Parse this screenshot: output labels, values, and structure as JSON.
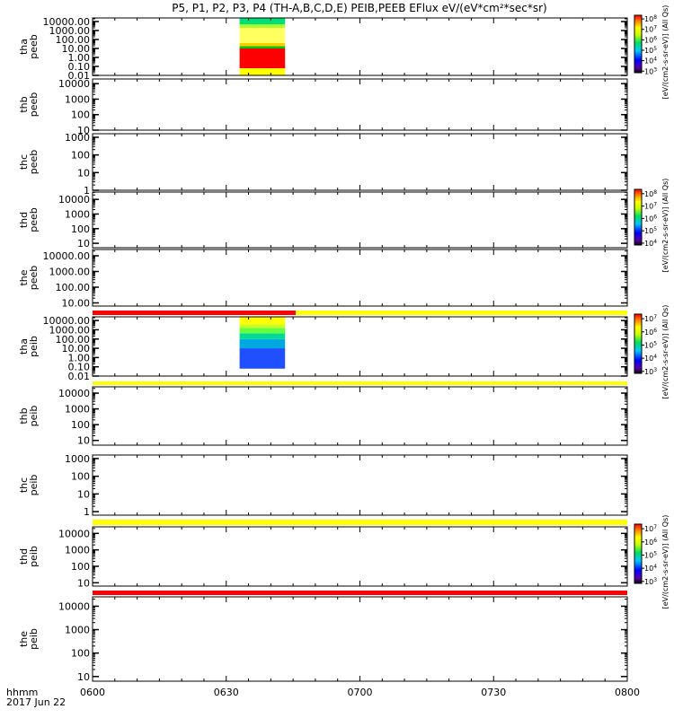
{
  "chart_data": {
    "type": "heatmap",
    "title": "P5, P1, P2, P3, P4 (TH-A,B,C,D,E) PEIB,PEEB EFlux eV/(eV*cm²*sec*sr)",
    "x_axis": {
      "label_line1": "hhmm",
      "label_line2": "2017 Jun 22",
      "range_hours": [
        6.0,
        8.0
      ],
      "ticks": [
        {
          "label": "0600",
          "t": 6.0
        },
        {
          "label": "0630",
          "t": 6.5
        },
        {
          "label": "0700",
          "t": 7.0
        },
        {
          "label": "0730",
          "t": 7.5
        },
        {
          "label": "0800",
          "t": 8.0
        }
      ]
    },
    "panels": [
      {
        "label1": "tha",
        "label2": "peeb",
        "ylim_log10": [
          -2,
          4.4
        ],
        "ticks": [
          {
            "label": "10000.00",
            "v": 4
          },
          {
            "label": "1000.00",
            "v": 3
          },
          {
            "label": "100.00",
            "v": 2
          },
          {
            "label": "10.00",
            "v": 1
          },
          {
            "label": "1.00",
            "v": 0
          },
          {
            "label": "0.10",
            "v": -1
          },
          {
            "label": "0.01",
            "v": -2
          }
        ],
        "data_interval": [
          6.55,
          6.72
        ],
        "bands": [
          {
            "from": -2,
            "to": -1.2,
            "color": "#ffff00"
          },
          {
            "from": -1.2,
            "to": 1.0,
            "color": "#ff0000"
          },
          {
            "from": 1.0,
            "to": 1.25,
            "color": "#00c800"
          },
          {
            "from": 1.25,
            "to": 1.6,
            "color": "#ffcc00"
          },
          {
            "from": 1.6,
            "to": 3.3,
            "color": "#ffff60"
          },
          {
            "from": 3.3,
            "to": 3.7,
            "color": "#a8ff30"
          },
          {
            "from": 3.7,
            "to": 4.4,
            "color": "#00e07a"
          }
        ]
      },
      {
        "label1": "thb",
        "label2": "peeb",
        "ylim_log10": [
          1,
          4.3
        ],
        "ticks": [
          {
            "label": "10000",
            "v": 4
          },
          {
            "label": "1000",
            "v": 3
          },
          {
            "label": "100",
            "v": 2
          },
          {
            "label": "10",
            "v": 1
          }
        ],
        "bands": []
      },
      {
        "label1": "thc",
        "label2": "peeb",
        "ylim_log10": [
          0,
          3.2
        ],
        "ticks": [
          {
            "label": "1000",
            "v": 3
          },
          {
            "label": "100",
            "v": 2
          },
          {
            "label": "10",
            "v": 1
          },
          {
            "label": "1",
            "v": 0
          }
        ],
        "bands": []
      },
      {
        "label1": "thd",
        "label2": "peeb",
        "ylim_log10": [
          0.7,
          4.5
        ],
        "ticks": [
          {
            "label": "10000",
            "v": 4
          },
          {
            "label": "1000",
            "v": 3
          },
          {
            "label": "100",
            "v": 2
          },
          {
            "label": "10",
            "v": 1
          }
        ],
        "bands": []
      },
      {
        "label1": "the",
        "label2": "peeb",
        "ylim_log10": [
          0.8,
          4.4
        ],
        "ticks": [
          {
            "label": "10000.00",
            "v": 4
          },
          {
            "label": "1000.00",
            "v": 3
          },
          {
            "label": "100.00",
            "v": 2
          },
          {
            "label": "10.00",
            "v": 1
          }
        ],
        "bands": []
      },
      {
        "label1": "tha",
        "label2": "peib",
        "ylim_log10": [
          -2,
          4.4
        ],
        "ticks": [
          {
            "label": "10000.00",
            "v": 4
          },
          {
            "label": "1000.00",
            "v": 3
          },
          {
            "label": "100.00",
            "v": 2
          },
          {
            "label": "10.00",
            "v": 1
          },
          {
            "label": "1.00",
            "v": 0
          },
          {
            "label": "0.10",
            "v": -1
          },
          {
            "label": "0.01",
            "v": -2
          }
        ],
        "data_interval": [
          6.55,
          6.72
        ],
        "bands": [
          {
            "from": -1.2,
            "to": 1.0,
            "color": "#1f4fff"
          },
          {
            "from": 1.0,
            "to": 2.0,
            "color": "#00a8e0"
          },
          {
            "from": 2.0,
            "to": 2.6,
            "color": "#00d898"
          },
          {
            "from": 2.6,
            "to": 3.2,
            "color": "#60ff40"
          },
          {
            "from": 3.2,
            "to": 3.6,
            "color": "#c8ff20"
          },
          {
            "from": 3.6,
            "to": 4.4,
            "color": "#ffff00"
          }
        ]
      },
      {
        "label1": "thb",
        "label2": "peib",
        "ylim_log10": [
          0.7,
          4.4
        ],
        "ticks": [
          {
            "label": "10000",
            "v": 4
          },
          {
            "label": "1000",
            "v": 3
          },
          {
            "label": "100",
            "v": 2
          },
          {
            "label": "10",
            "v": 1
          }
        ],
        "bands": []
      },
      {
        "label1": "thc",
        "label2": "peib",
        "ylim_log10": [
          -0.2,
          3.2
        ],
        "ticks": [
          {
            "label": "1000",
            "v": 3
          },
          {
            "label": "100",
            "v": 2
          },
          {
            "label": "10",
            "v": 1
          },
          {
            "label": "1",
            "v": 0
          }
        ],
        "bands": []
      },
      {
        "label1": "thd",
        "label2": "peib",
        "ylim_log10": [
          0.8,
          4.4
        ],
        "ticks": [
          {
            "label": "10000",
            "v": 4
          },
          {
            "label": "1000",
            "v": 3
          },
          {
            "label": "100",
            "v": 2
          },
          {
            "label": "10",
            "v": 1
          }
        ],
        "bands": []
      },
      {
        "label1": "the",
        "label2": "peib",
        "ylim_log10": [
          0.8,
          4.4
        ],
        "ticks": [
          {
            "label": "10000",
            "v": 4
          },
          {
            "label": "1000",
            "v": 3
          },
          {
            "label": "100",
            "v": 2
          },
          {
            "label": "10",
            "v": 1
          }
        ],
        "bands": []
      }
    ],
    "flag_bars": [
      {
        "after_panel": 4,
        "segments": [
          {
            "from": 6.0,
            "to": 6.76,
            "color": "#ff0000"
          },
          {
            "from": 6.76,
            "to": 8.0,
            "color": "#ffff00"
          }
        ]
      },
      {
        "after_panel": 5,
        "segments": [
          {
            "from": 6.0,
            "to": 8.0,
            "color": "#ffff00"
          }
        ]
      },
      {
        "after_panel": 7,
        "segments": [
          {
            "from": 6.0,
            "to": 8.0,
            "color": "#ffff00"
          }
        ]
      },
      {
        "after_panel": 8,
        "segments": [
          {
            "from": 6.0,
            "to": 8.0,
            "color": "#ff0000"
          }
        ]
      }
    ],
    "colorbars": [
      {
        "panels": [
          0
        ],
        "ticks_log10": [
          3,
          4,
          5,
          6,
          7,
          8
        ],
        "label": "[eV/(cm2-s-sr-eV)] (All Qs)"
      },
      {
        "panels": [
          3
        ],
        "ticks_log10": [
          4,
          5,
          6,
          7,
          8
        ],
        "label": "[eV/(cm2-s-sr-eV)] (All Qs)"
      },
      {
        "panels": [
          5
        ],
        "ticks_log10": [
          3,
          4,
          5,
          6,
          7
        ],
        "label": "[eV/(cm2-s-sr-eV)] (All Qs)"
      },
      {
        "panels": [
          8
        ],
        "ticks_log10": [
          3,
          4,
          5,
          6,
          7
        ],
        "label": "[eV/(cm2-s-sr-eV)] (All Qs)"
      }
    ]
  }
}
